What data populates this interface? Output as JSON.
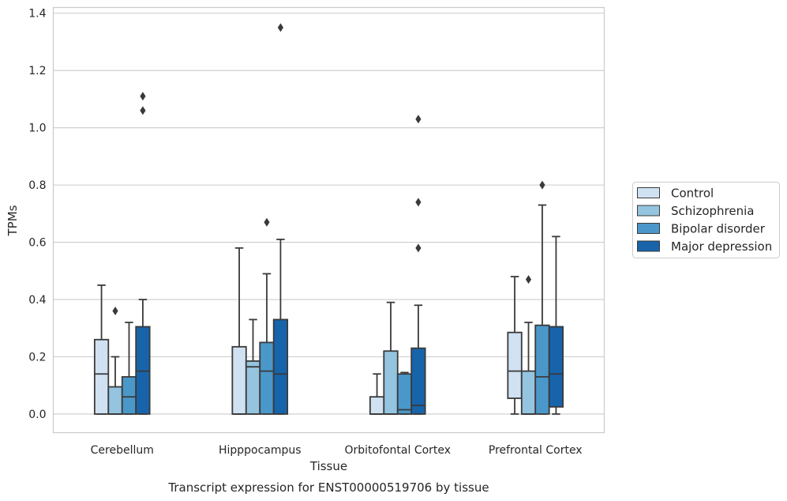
{
  "chart_data": {
    "type": "box",
    "title": "Transcript expression for ENST00000519706 by tissue",
    "xlabel": "Tissue",
    "ylabel": "TPMs",
    "ylim": [
      -0.065,
      1.42
    ],
    "yticks": [
      "0.0",
      "0.2",
      "0.4",
      "0.6",
      "0.8",
      "1.0",
      "1.2",
      "1.4"
    ],
    "grid": true,
    "legend_position": "right",
    "categories": [
      "Cerebellum",
      "Hipppocampus",
      "Orbitofontal Cortex",
      "Prefrontal Cortex"
    ],
    "series": [
      {
        "name": "Control",
        "color": "#d0e1f2",
        "boxes": [
          {
            "whislo": 0.0,
            "q1": 0.0,
            "med": 0.14,
            "q3": 0.26,
            "whishi": 0.45,
            "fliers": []
          },
          {
            "whislo": 0.0,
            "q1": 0.0,
            "med": 0.0,
            "q3": 0.235,
            "whishi": 0.58,
            "fliers": []
          },
          {
            "whislo": 0.0,
            "q1": 0.0,
            "med": 0.0,
            "q3": 0.06,
            "whishi": 0.14,
            "fliers": []
          },
          {
            "whislo": 0.0,
            "q1": 0.055,
            "med": 0.15,
            "q3": 0.285,
            "whishi": 0.48,
            "fliers": []
          }
        ]
      },
      {
        "name": "Schizophrenia",
        "color": "#94c4df",
        "boxes": [
          {
            "whislo": 0.0,
            "q1": 0.0,
            "med": 0.0,
            "q3": 0.095,
            "whishi": 0.2,
            "fliers": [
              0.36
            ]
          },
          {
            "whislo": 0.0,
            "q1": 0.0,
            "med": 0.165,
            "q3": 0.185,
            "whishi": 0.33,
            "fliers": []
          },
          {
            "whislo": 0.0,
            "q1": 0.0,
            "med": 0.0,
            "q3": 0.22,
            "whishi": 0.39,
            "fliers": []
          },
          {
            "whislo": 0.0,
            "q1": 0.0,
            "med": 0.0,
            "q3": 0.15,
            "whishi": 0.32,
            "fliers": [
              0.47
            ]
          }
        ]
      },
      {
        "name": "Bipolar disorder",
        "color": "#4a98c9",
        "boxes": [
          {
            "whislo": 0.0,
            "q1": 0.0,
            "med": 0.06,
            "q3": 0.13,
            "whishi": 0.32,
            "fliers": []
          },
          {
            "whislo": 0.0,
            "q1": 0.0,
            "med": 0.15,
            "q3": 0.25,
            "whishi": 0.49,
            "fliers": [
              0.67
            ]
          },
          {
            "whislo": 0.0,
            "q1": 0.0,
            "med": 0.015,
            "q3": 0.14,
            "whishi": 0.145,
            "fliers": []
          },
          {
            "whislo": 0.0,
            "q1": 0.0,
            "med": 0.13,
            "q3": 0.31,
            "whishi": 0.73,
            "fliers": [
              0.8
            ]
          }
        ]
      },
      {
        "name": "Major depression",
        "color": "#1764ab",
        "boxes": [
          {
            "whislo": 0.0,
            "q1": 0.0,
            "med": 0.15,
            "q3": 0.305,
            "whishi": 0.4,
            "fliers": [
              1.06,
              1.11
            ]
          },
          {
            "whislo": 0.0,
            "q1": 0.0,
            "med": 0.14,
            "q3": 0.33,
            "whishi": 0.61,
            "fliers": [
              1.35
            ]
          },
          {
            "whislo": 0.0,
            "q1": 0.0,
            "med": 0.03,
            "q3": 0.23,
            "whishi": 0.38,
            "fliers": [
              0.58,
              0.74,
              1.03
            ]
          },
          {
            "whislo": 0.0,
            "q1": 0.025,
            "med": 0.14,
            "q3": 0.305,
            "whishi": 0.62,
            "fliers": []
          }
        ]
      }
    ]
  }
}
